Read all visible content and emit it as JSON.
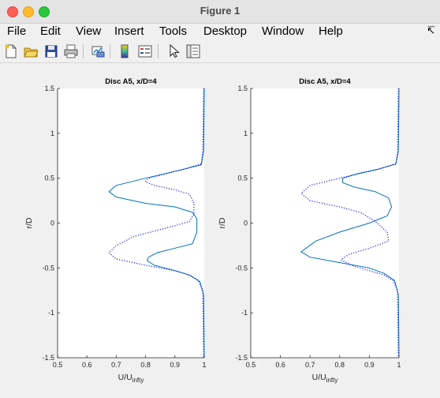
{
  "window": {
    "title": "Figure 1"
  },
  "menu": {
    "items": [
      "File",
      "Edit",
      "View",
      "Insert",
      "Tools",
      "Desktop",
      "Window",
      "Help"
    ],
    "overflow_icon": "pin-arrow-icon"
  },
  "toolbar": {
    "icons": [
      "new-figure-icon",
      "open-file-icon",
      "save-icon",
      "print-icon",
      "link-plot-icon",
      "colorbar-icon",
      "legend-icon",
      "pointer-icon",
      "property-editor-icon"
    ]
  },
  "chart_data": [
    {
      "type": "line",
      "title": "Disc A5, x/D=4",
      "xlabel_main": "U/U",
      "xlabel_sub": "infty",
      "ylabel": "r/D",
      "xlim": [
        0.5,
        1
      ],
      "ylim": [
        -1.5,
        1.5
      ],
      "xticks": [
        "0.5",
        "0.6",
        "0.7",
        "0.8",
        "0.9",
        "1"
      ],
      "yticks": [
        "-1.5",
        "-1",
        "-0.5",
        "0",
        "0.5",
        "1",
        "1.5"
      ],
      "colors": {
        "solid": "#0072bd",
        "dotted": "#0000ff"
      },
      "series": [
        {
          "style": "solid",
          "points": [
            [
              1.0,
              1.5
            ],
            [
              0.998,
              0.8
            ],
            [
              0.99,
              0.65
            ],
            [
              0.93,
              0.6
            ],
            [
              0.8,
              0.5
            ],
            [
              0.7,
              0.42
            ],
            [
              0.675,
              0.35
            ],
            [
              0.7,
              0.29
            ],
            [
              0.8,
              0.22
            ],
            [
              0.9,
              0.18
            ],
            [
              0.96,
              0.12
            ],
            [
              0.975,
              0.05
            ],
            [
              0.975,
              -0.1
            ],
            [
              0.96,
              -0.23
            ],
            [
              0.9,
              -0.28
            ],
            [
              0.84,
              -0.33
            ],
            [
              0.81,
              -0.38
            ],
            [
              0.805,
              -0.42
            ],
            [
              0.83,
              -0.47
            ],
            [
              0.9,
              -0.53
            ],
            [
              0.95,
              -0.58
            ],
            [
              0.985,
              -0.65
            ],
            [
              0.998,
              -0.8
            ],
            [
              1.0,
              -1.5
            ]
          ]
        },
        {
          "style": "dotted",
          "points": [
            [
              0.998,
              1.5
            ],
            [
              0.995,
              0.8
            ],
            [
              0.99,
              0.66
            ],
            [
              0.93,
              0.6
            ],
            [
              0.87,
              0.55
            ],
            [
              0.81,
              0.5
            ],
            [
              0.8,
              0.46
            ],
            [
              0.83,
              0.42
            ],
            [
              0.9,
              0.37
            ],
            [
              0.95,
              0.32
            ],
            [
              0.965,
              0.22
            ],
            [
              0.965,
              0.1
            ],
            [
              0.95,
              0.02
            ],
            [
              0.9,
              -0.03
            ],
            [
              0.84,
              -0.08
            ],
            [
              0.76,
              -0.15
            ],
            [
              0.7,
              -0.25
            ],
            [
              0.675,
              -0.33
            ],
            [
              0.7,
              -0.4
            ],
            [
              0.8,
              -0.47
            ],
            [
              0.9,
              -0.53
            ],
            [
              0.95,
              -0.58
            ],
            [
              0.98,
              -0.64
            ],
            [
              0.995,
              -0.75
            ],
            [
              0.998,
              -1.5
            ]
          ]
        }
      ]
    },
    {
      "type": "line",
      "title": "Disc A5, x/D=4",
      "xlabel_main": "U/U",
      "xlabel_sub": "infty",
      "ylabel": "r/D",
      "xlim": [
        0.5,
        1
      ],
      "ylim": [
        -1.5,
        1.5
      ],
      "xticks": [
        "0.5",
        "0.6",
        "0.7",
        "0.8",
        "0.9",
        "1"
      ],
      "yticks": [
        "-1.5",
        "-1",
        "-0.5",
        "0",
        "0.5",
        "1",
        "1.5"
      ],
      "colors": {
        "solid": "#0072bd",
        "dotted": "#0000ff"
      },
      "series": [
        {
          "style": "solid",
          "points": [
            [
              1.0,
              1.5
            ],
            [
              0.998,
              0.8
            ],
            [
              0.99,
              0.66
            ],
            [
              0.93,
              0.6
            ],
            [
              0.86,
              0.55
            ],
            [
              0.81,
              0.5
            ],
            [
              0.81,
              0.45
            ],
            [
              0.85,
              0.4
            ],
            [
              0.92,
              0.35
            ],
            [
              0.965,
              0.28
            ],
            [
              0.975,
              0.18
            ],
            [
              0.96,
              0.08
            ],
            [
              0.9,
              0.0
            ],
            [
              0.8,
              -0.1
            ],
            [
              0.72,
              -0.2
            ],
            [
              0.67,
              -0.32
            ],
            [
              0.7,
              -0.38
            ],
            [
              0.8,
              -0.44
            ],
            [
              0.9,
              -0.5
            ],
            [
              0.95,
              -0.56
            ],
            [
              0.985,
              -0.64
            ],
            [
              0.998,
              -0.8
            ],
            [
              1.0,
              -1.5
            ]
          ]
        },
        {
          "style": "dotted",
          "points": [
            [
              0.998,
              1.5
            ],
            [
              0.995,
              0.8
            ],
            [
              0.99,
              0.66
            ],
            [
              0.93,
              0.6
            ],
            [
              0.8,
              0.5
            ],
            [
              0.7,
              0.42
            ],
            [
              0.67,
              0.33
            ],
            [
              0.7,
              0.25
            ],
            [
              0.8,
              0.18
            ],
            [
              0.87,
              0.12
            ],
            [
              0.92,
              0.02
            ],
            [
              0.96,
              -0.1
            ],
            [
              0.965,
              -0.2
            ],
            [
              0.9,
              -0.28
            ],
            [
              0.83,
              -0.35
            ],
            [
              0.805,
              -0.41
            ],
            [
              0.84,
              -0.47
            ],
            [
              0.9,
              -0.53
            ],
            [
              0.95,
              -0.58
            ],
            [
              0.98,
              -0.64
            ],
            [
              0.995,
              -0.75
            ],
            [
              0.998,
              -1.5
            ]
          ]
        }
      ]
    }
  ]
}
